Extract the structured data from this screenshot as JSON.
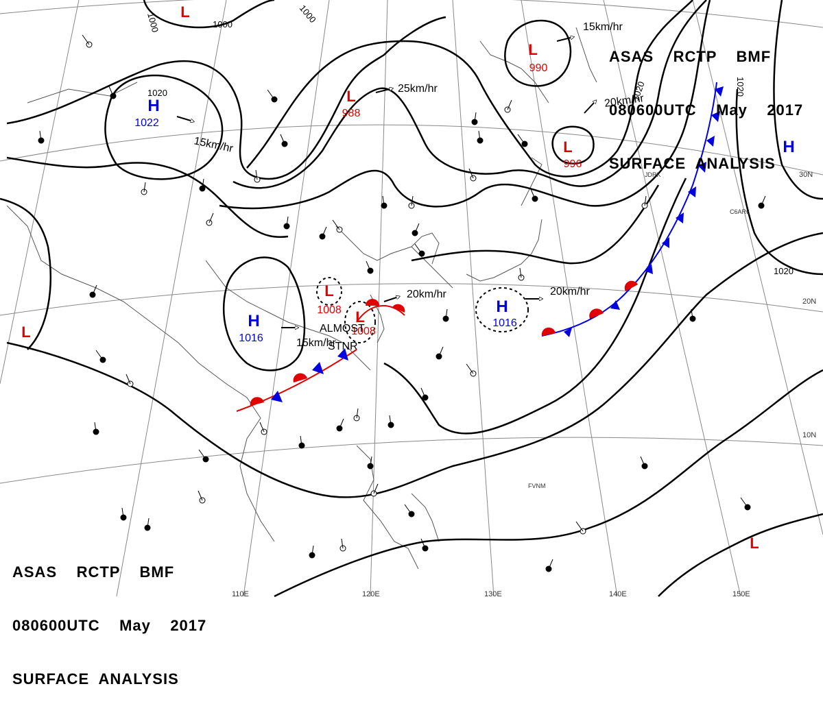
{
  "header": {
    "line1": "ASAS    RCTP    BMF",
    "line2": "080600UTC    May    2017",
    "line3": "SURFACE  ANALYSIS"
  },
  "footer": {
    "line1": "ASAS    RCTP    BMF",
    "line2": "080600UTC    May    2017",
    "line3": "SURFACE  ANALYSIS"
  },
  "colors": {
    "low": "#e00000",
    "high": "#0000e0",
    "warm_front": "#e00000",
    "cold_front": "#0000e0",
    "isobar": "#000000",
    "coast": "#555555"
  },
  "pressure_centers": [
    {
      "type": "L",
      "value": "988"
    },
    {
      "type": "L",
      "value": "990"
    },
    {
      "type": "L",
      "value": "996"
    },
    {
      "type": "L",
      "value": "1008"
    },
    {
      "type": "L",
      "value": "1008"
    },
    {
      "type": "H",
      "value": "1022"
    },
    {
      "type": "H",
      "value": "1016"
    },
    {
      "type": "H",
      "value": "1016"
    },
    {
      "type": "H",
      "value": ""
    },
    {
      "type": "L",
      "value": ""
    },
    {
      "type": "L",
      "value": ""
    },
    {
      "type": "L",
      "value": ""
    }
  ],
  "isobar_labels": [
    "1000",
    "1000",
    "1000",
    "1020",
    "1020",
    "1020",
    "1020"
  ],
  "motion_labels": [
    "15km/hr",
    "25km/hr",
    "20km/hr",
    "15km/hr",
    "20km/hr",
    "20km/hr",
    "15km/hr"
  ],
  "station_labels": [
    "ALMOST",
    "STNR"
  ],
  "lat_labels": [
    "30N",
    "20N",
    "10N"
  ],
  "lon_labels": [
    "110E",
    "120E",
    "130E",
    "140E",
    "150E"
  ],
  "station_ids": [
    "FVNM",
    "JDRK",
    "C6AR6"
  ]
}
